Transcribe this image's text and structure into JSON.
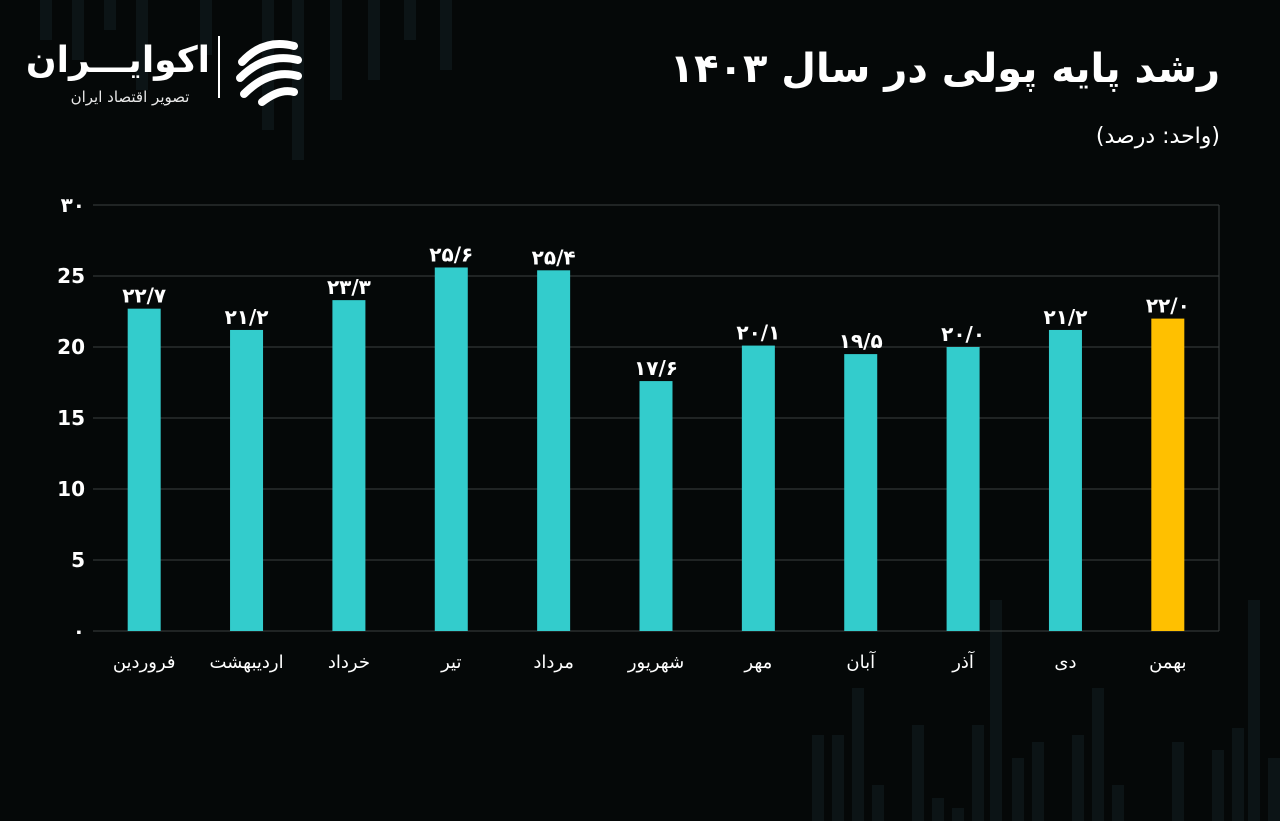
{
  "header": {
    "title": "رشد پایه پولی در سال ۱۴۰۳",
    "unit": "(واحد: درصد)"
  },
  "logo": {
    "name": "اکوایـــران",
    "tagline": "تصویر اقتصاد ایران"
  },
  "colors": {
    "background": "#050808",
    "bar": "#33cccc",
    "highlight": "#ffc000",
    "grid": "#3a3f3f",
    "text": "#ffffff"
  },
  "chart_data": {
    "type": "bar",
    "title": "رشد پایه پولی در سال ۱۴۰۳",
    "ylabel": "",
    "xlabel": "",
    "ylim": [
      0,
      30
    ],
    "yticks": [
      0,
      5,
      10,
      15,
      20,
      25,
      30
    ],
    "ytick_labels": [
      "۰",
      "5",
      "10",
      "15",
      "20",
      "25",
      "۳۰"
    ],
    "grid": true,
    "categories": [
      "فروردین",
      "اردیبهشت",
      "خرداد",
      "تیر",
      "مرداد",
      "شهریور",
      "مهر",
      "آبان",
      "آذر",
      "دی",
      "بهمن"
    ],
    "values": [
      22.7,
      21.2,
      23.3,
      25.6,
      25.4,
      17.6,
      20.1,
      19.5,
      20.0,
      21.2,
      22.0
    ],
    "value_labels": [
      "۲۲/۷",
      "۲۱/۲",
      "۲۳/۳",
      "۲۵/۶",
      "۲۵/۴",
      "۱۷/۶",
      "۲۰/۱",
      "۱۹/۵",
      "۲۰/۰",
      "۲۱/۲",
      "۲۲/۰"
    ],
    "highlight_index": 10
  }
}
